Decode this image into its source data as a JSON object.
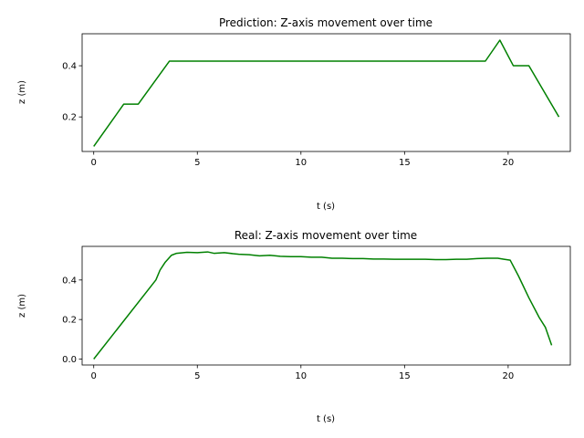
{
  "chart_data": [
    {
      "type": "line",
      "title": "Prediction: Z-axis movement over time",
      "xlabel": "t (s)",
      "ylabel": "z (m)",
      "xlim": [
        -0.56,
        23.0
      ],
      "ylim": [
        0.065,
        0.525
      ],
      "xticks": [
        0,
        5,
        10,
        15,
        20
      ],
      "yticks": [
        0.2,
        0.4
      ],
      "grid": false,
      "color": "#008000",
      "x": [
        0,
        1.45,
        2.15,
        3.65,
        18.9,
        19.6,
        20.25,
        21.0,
        22.45
      ],
      "y": [
        0.085,
        0.25,
        0.25,
        0.418,
        0.418,
        0.5,
        0.4,
        0.4,
        0.2
      ]
    },
    {
      "type": "line",
      "title": "Real: Z-axis movement over time",
      "xlabel": "t (s)",
      "ylabel": "z (m)",
      "xlim": [
        -0.56,
        23.0
      ],
      "ylim": [
        -0.03,
        0.57
      ],
      "xticks": [
        0,
        5,
        10,
        15,
        20
      ],
      "yticks": [
        0.0,
        0.2,
        0.4
      ],
      "grid": false,
      "color": "#008000",
      "x": [
        0,
        3.0,
        3.2,
        3.45,
        3.75,
        4.0,
        4.5,
        5.0,
        5.5,
        5.8,
        6.3,
        7.0,
        7.5,
        8.0,
        8.5,
        9.0,
        9.5,
        10.0,
        10.5,
        11.0,
        11.5,
        12.0,
        12.5,
        13.0,
        13.5,
        14.0,
        14.5,
        15.0,
        15.5,
        16.0,
        16.5,
        17.0,
        17.5,
        18.0,
        18.5,
        19.0,
        19.5,
        19.8,
        20.1,
        20.5,
        21.0,
        21.5,
        21.8,
        22.1
      ],
      "y": [
        0.0,
        0.4,
        0.45,
        0.49,
        0.525,
        0.535,
        0.54,
        0.538,
        0.542,
        0.535,
        0.538,
        0.53,
        0.528,
        0.522,
        0.525,
        0.52,
        0.518,
        0.518,
        0.515,
        0.515,
        0.51,
        0.51,
        0.508,
        0.508,
        0.506,
        0.506,
        0.505,
        0.505,
        0.505,
        0.505,
        0.503,
        0.503,
        0.505,
        0.505,
        0.508,
        0.51,
        0.51,
        0.505,
        0.5,
        0.42,
        0.31,
        0.21,
        0.16,
        0.07
      ]
    }
  ]
}
